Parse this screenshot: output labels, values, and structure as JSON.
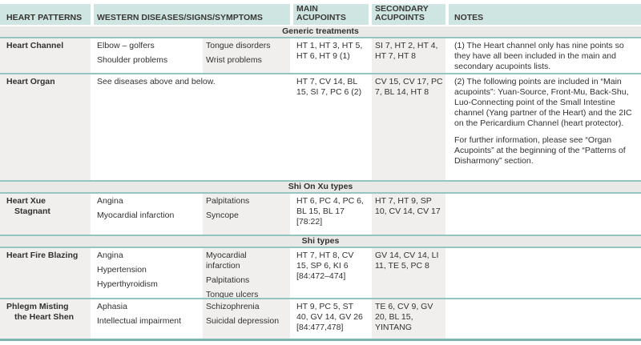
{
  "header": {
    "heart_patterns": "HEART PATTERNS",
    "western": "WESTERN DISEASES/SIGNS/SYMPTOMS",
    "main": "MAIN ACUPOINTS",
    "secondary": "SECONDARY ACUPOINTS",
    "notes": "NOTES"
  },
  "dividers": {
    "generic": "Generic treatments",
    "shi_on_xu": "Shi On Xu types",
    "shi": "Shi types"
  },
  "rows": [
    {
      "pattern_lines": [
        "Heart Channel"
      ],
      "symptoms_a": [
        "Elbow – golfers",
        "Shoulder problems"
      ],
      "symptoms_b": [
        "Tongue disorders",
        "Wrist problems"
      ],
      "main_acupoints": "HT 1, HT 3, HT 5, HT 6, HT 9 (1)",
      "secondary_acupoints": "SI 7, HT 2, HT 4, HT 7, HT 8",
      "notes": [
        "(1) The Heart channel only has nine points so they have all been included in the main and secondary acupoints lists."
      ]
    },
    {
      "pattern_lines": [
        "Heart Organ"
      ],
      "symptoms_merged": "See diseases above and below.",
      "main_acupoints": "HT 7, CV 14, BL 15, SI 7, PC 6 (2)",
      "secondary_acupoints": "CV 15, CV 17, PC 7, BL 14, HT 8",
      "notes": [
        "(2) The following points are included in “Main acupoints”: Yuan-Source, Front-Mu, Back-Shu, Luo-Connecting point of the Small Intestine channel (Yang partner of the Heart) and the 2IC on the Pericardium Channel (heart protector).",
        "For further information, please see “Organ Acupoints” at the beginning of the “Patterns of Disharmony” section."
      ]
    },
    {
      "pattern_lines": [
        "Heart Xue",
        "Stagnant"
      ],
      "symptoms_a": [
        "Angina",
        "Myocardial infarction"
      ],
      "symptoms_b": [
        "Palpitations",
        "Syncope"
      ],
      "main_acupoints": "HT 6, PC 4, PC 6, BL 15, BL 17 [78:22]",
      "secondary_acupoints": "HT 7, HT 9, SP 10, CV 14, CV 17"
    },
    {
      "pattern_lines": [
        "Heart Fire Blazing"
      ],
      "symptoms_a": [
        "Angina",
        "Hypertension",
        "Hyperthyroidism"
      ],
      "symptoms_b": [
        "Myocardial infarction",
        "Palpitations",
        "Tongue ulcers"
      ],
      "main_acupoints": "HT 7, HT 8, CV 15, SP 6, KI 6 [84:472–474]",
      "secondary_acupoints": "GV 14, CV 14, LI 11, TE 5, PC 8"
    },
    {
      "pattern_lines": [
        "Phlegm Misting",
        "the Heart Shen"
      ],
      "symptoms_a": [
        "Aphasia",
        "Intellectual impairment"
      ],
      "symptoms_b": [
        "Schizophrenia",
        "Suicidal depression"
      ],
      "main_acupoints": "HT 9, PC 5, ST 40, GV 14, GV 26 [84:477,478]",
      "secondary_acupoints": "TE 6, CV 9, GV 20, BL 15, YINTANG"
    }
  ]
}
